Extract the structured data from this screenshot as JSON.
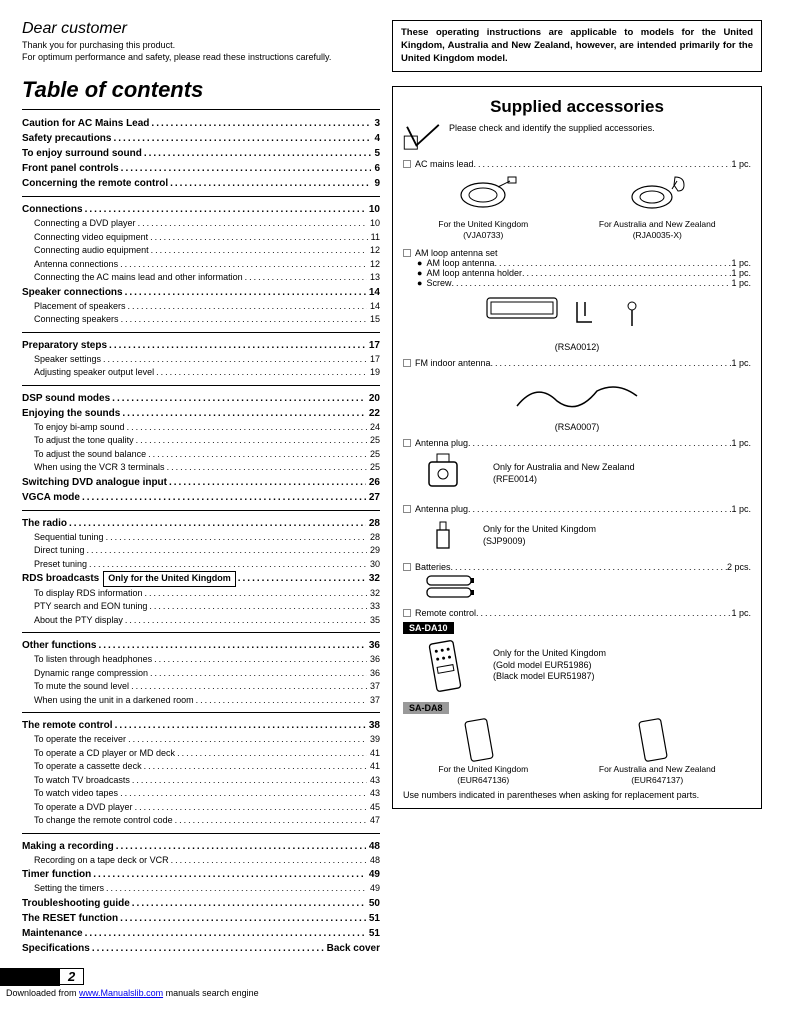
{
  "dear": {
    "heading": "Dear customer",
    "line1": "Thank you for purchasing this product.",
    "line2": "For optimum performance and safety, please read these instructions carefully."
  },
  "note_box": "These operating instructions are applicable to models for the United Kingdom, Australia and New Zealand, however, are intended primarily for the United Kingdom model.",
  "toc_title": "Table of contents",
  "toc": [
    {
      "type": "bold",
      "label": "Caution for AC Mains Lead",
      "page": "3"
    },
    {
      "type": "bold",
      "label": "Safety precautions",
      "page": "4"
    },
    {
      "type": "bold",
      "label": "To enjoy surround sound",
      "page": "5"
    },
    {
      "type": "bold",
      "label": "Front panel controls",
      "page": "6"
    },
    {
      "type": "bold",
      "label": "Concerning the remote control",
      "page": "9"
    },
    {
      "type": "rule"
    },
    {
      "type": "bold",
      "label": "Connections",
      "page": "10"
    },
    {
      "type": "sub",
      "label": "Connecting a DVD player",
      "page": "10"
    },
    {
      "type": "sub",
      "label": "Connecting video equipment",
      "page": "11"
    },
    {
      "type": "sub",
      "label": "Connecting audio equipment",
      "page": "12"
    },
    {
      "type": "sub",
      "label": "Antenna connections",
      "page": "12"
    },
    {
      "type": "sub",
      "label": "Connecting the AC mains lead and other information",
      "page": "13"
    },
    {
      "type": "bold",
      "label": "Speaker connections",
      "page": "14"
    },
    {
      "type": "sub",
      "label": "Placement of speakers",
      "page": "14"
    },
    {
      "type": "sub",
      "label": "Connecting speakers",
      "page": "15"
    },
    {
      "type": "rule"
    },
    {
      "type": "bold",
      "label": "Preparatory steps",
      "page": "17"
    },
    {
      "type": "sub",
      "label": "Speaker settings",
      "page": "17"
    },
    {
      "type": "sub",
      "label": "Adjusting speaker output level",
      "page": "19"
    },
    {
      "type": "rule"
    },
    {
      "type": "bold",
      "label": "DSP sound modes",
      "page": "20"
    },
    {
      "type": "bold",
      "label": "Enjoying the sounds",
      "page": "22"
    },
    {
      "type": "sub",
      "label": "To enjoy bi-amp sound",
      "page": "24"
    },
    {
      "type": "sub",
      "label": "To adjust the tone quality",
      "page": "25"
    },
    {
      "type": "sub",
      "label": "To adjust the sound balance",
      "page": "25"
    },
    {
      "type": "sub",
      "label": "When using the VCR 3 terminals",
      "page": "25"
    },
    {
      "type": "bold",
      "label": "Switching DVD analogue input",
      "page": "26"
    },
    {
      "type": "bold",
      "label": "VGCA mode",
      "page": "27"
    },
    {
      "type": "rule"
    },
    {
      "type": "bold",
      "label": "The radio",
      "page": "28"
    },
    {
      "type": "sub",
      "label": "Sequential tuning",
      "page": "28"
    },
    {
      "type": "sub",
      "label": "Direct tuning",
      "page": "29"
    },
    {
      "type": "sub",
      "label": "Preset tuning",
      "page": "30"
    },
    {
      "type": "bold",
      "label": "RDS broadcasts",
      "badge": "Only for the United Kingdom",
      "page": "32"
    },
    {
      "type": "sub",
      "label": "To display RDS information",
      "page": "32"
    },
    {
      "type": "sub",
      "label": "PTY search and EON tuning",
      "page": "33"
    },
    {
      "type": "sub",
      "label": "About the PTY display",
      "page": "35"
    },
    {
      "type": "rule"
    },
    {
      "type": "bold",
      "label": "Other functions",
      "page": "36"
    },
    {
      "type": "sub",
      "label": "To listen through headphones",
      "page": "36"
    },
    {
      "type": "sub",
      "label": "Dynamic range compression",
      "page": "36"
    },
    {
      "type": "sub",
      "label": "To mute the sound level",
      "page": "37"
    },
    {
      "type": "sub",
      "label": "When using the unit in a darkened room",
      "page": "37"
    },
    {
      "type": "rule"
    },
    {
      "type": "bold",
      "label": "The remote control",
      "page": "38"
    },
    {
      "type": "sub",
      "label": "To operate the receiver",
      "page": "39"
    },
    {
      "type": "sub",
      "label": "To operate a CD player or MD deck",
      "page": "41"
    },
    {
      "type": "sub",
      "label": "To operate a cassette deck",
      "page": "41"
    },
    {
      "type": "sub",
      "label": "To watch TV broadcasts",
      "page": "43"
    },
    {
      "type": "sub",
      "label": "To watch video tapes",
      "page": "43"
    },
    {
      "type": "sub",
      "label": "To operate a DVD player",
      "page": "45"
    },
    {
      "type": "sub",
      "label": "To change the remote control code",
      "page": "47"
    },
    {
      "type": "rule"
    },
    {
      "type": "bold",
      "label": "Making a recording",
      "page": "48"
    },
    {
      "type": "sub",
      "label": "Recording on a tape deck or VCR",
      "page": "48"
    },
    {
      "type": "bold",
      "label": "Timer function",
      "page": "49"
    },
    {
      "type": "sub",
      "label": "Setting the timers",
      "page": "49"
    },
    {
      "type": "bold",
      "label": "Troubleshooting guide",
      "page": "50"
    },
    {
      "type": "bold",
      "label": "The RESET function",
      "page": "51"
    },
    {
      "type": "bold",
      "label": "Maintenance",
      "page": "51"
    },
    {
      "type": "bold",
      "label": "Specifications",
      "page": "Back cover"
    }
  ],
  "supplied": {
    "title": "Supplied accessories",
    "check_text": "Please check and identify the supplied accessories.",
    "items": {
      "ac_mains": {
        "label": "AC mains lead",
        "qty": "1 pc."
      },
      "uk": {
        "caption": "For the United Kingdom",
        "code": "(VJA0733)"
      },
      "anz": {
        "caption": "For Australia and New Zealand",
        "code": "(RJA0035-X)"
      },
      "am_set": {
        "label": "AM loop antenna set"
      },
      "am_loop": {
        "label": "AM loop antenna",
        "qty": "1 pc."
      },
      "am_holder": {
        "label": "AM loop antenna holder",
        "qty": "1 pc."
      },
      "screw": {
        "label": "Screw",
        "qty": "1 pc."
      },
      "am_code": "(RSA0012)",
      "fm": {
        "label": "FM indoor antenna",
        "qty": "1 pc."
      },
      "fm_code": "(RSA0007)",
      "plug_anz": {
        "label": "Antenna plug",
        "qty": "1 pc.",
        "note": "Only for Australia and New Zealand",
        "code": "(RFE0014)"
      },
      "plug_uk": {
        "label": "Antenna plug",
        "qty": "1 pc.",
        "note": "Only for the United Kingdom",
        "code": "(SJP9009)"
      },
      "batt": {
        "label": "Batteries",
        "qty": "2 pcs."
      },
      "remote": {
        "label": "Remote control",
        "qty": "1 pc."
      },
      "da10": "SA-DA10",
      "da10_note": "Only for the United Kingdom",
      "da10_gold": "(Gold model EUR51986)",
      "da10_black": "(Black model EUR51987)",
      "da8": "SA-DA8",
      "da8_uk": {
        "caption": "For the United Kingdom",
        "code": "(EUR647136)"
      },
      "da8_anz": {
        "caption": "For Australia and New Zealand",
        "code": "(EUR647137)"
      }
    },
    "use_note": "Use numbers indicated in parentheses when asking for replacement parts."
  },
  "page_number": "2",
  "footer": {
    "pre": "Downloaded from ",
    "link": "www.Manualslib.com",
    "post": " manuals search engine"
  }
}
